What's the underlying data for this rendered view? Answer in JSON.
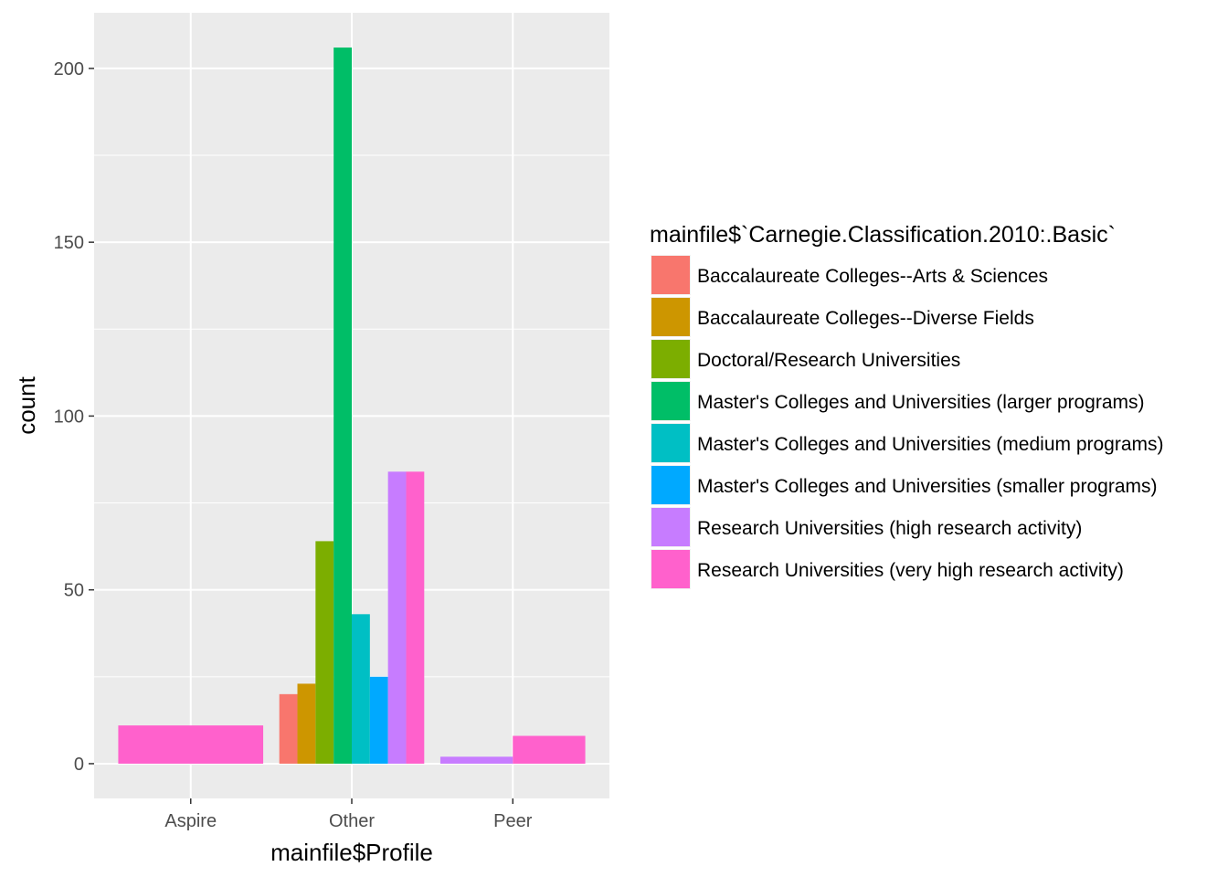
{
  "chart_data": {
    "type": "bar",
    "position": "dodge",
    "xlabel": "mainfile$Profile",
    "ylabel": "count",
    "categories": [
      "Aspire",
      "Other",
      "Peer"
    ],
    "ylim": [
      -10,
      216
    ],
    "yticks": [
      0,
      50,
      100,
      150,
      200
    ],
    "grid": true,
    "legend_position": "right",
    "legend_title": "mainfile$`Carnegie.Classification.2010:.Basic`",
    "series": [
      {
        "name": "Baccalaureate Colleges--Arts & Sciences",
        "color": "#F8766D",
        "values": [
          0,
          20,
          0
        ]
      },
      {
        "name": "Baccalaureate Colleges--Diverse Fields",
        "color": "#CD9600",
        "values": [
          0,
          23,
          0
        ]
      },
      {
        "name": "Doctoral/Research Universities",
        "color": "#7CAE00",
        "values": [
          0,
          64,
          0
        ]
      },
      {
        "name": "Master's Colleges and Universities (larger programs)",
        "color": "#00BE67",
        "values": [
          0,
          206,
          0
        ]
      },
      {
        "name": "Master's Colleges and Universities (medium programs)",
        "color": "#00BFC4",
        "values": [
          0,
          43,
          0
        ]
      },
      {
        "name": "Master's Colleges and Universities (smaller programs)",
        "color": "#00A9FF",
        "values": [
          0,
          25,
          0
        ]
      },
      {
        "name": "Research Universities (high research activity)",
        "color": "#C77CFF",
        "values": [
          0,
          84,
          2
        ]
      },
      {
        "name": "Research Universities (very high research activity)",
        "color": "#FF61CC",
        "values": [
          11,
          84,
          8
        ]
      }
    ],
    "groups": [
      {
        "category": "Aspire",
        "series": [
          7
        ]
      },
      {
        "category": "Other",
        "series": [
          0,
          1,
          2,
          3,
          4,
          5,
          6,
          7
        ]
      },
      {
        "category": "Peer",
        "series": [
          6,
          7
        ]
      }
    ]
  }
}
